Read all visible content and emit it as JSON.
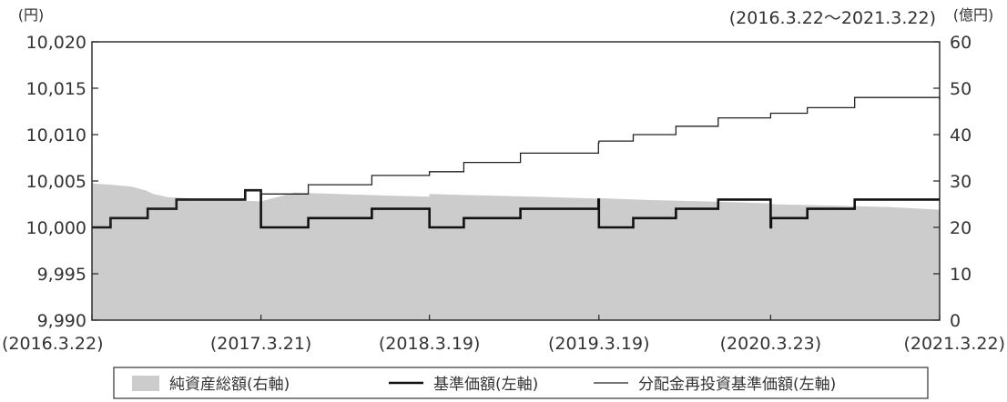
{
  "chart_data": {
    "type": "line",
    "title": "",
    "period": "(2016.3.22～2021.3.22)",
    "left_axis": {
      "unit": "(円)",
      "ylim": [
        9990,
        10020
      ],
      "ticks": [
        "9,990",
        "9,995",
        "10,000",
        "10,005",
        "10,010",
        "10,015",
        "10,020"
      ],
      "tick_values": [
        9990,
        9995,
        10000,
        10005,
        10010,
        10015,
        10020
      ]
    },
    "right_axis": {
      "unit": "(億円)",
      "ylim": [
        0,
        60
      ],
      "ticks": [
        "0",
        "10",
        "20",
        "30",
        "40",
        "50",
        "60"
      ],
      "tick_values": [
        0,
        10,
        20,
        30,
        40,
        50,
        60
      ]
    },
    "x_axis": {
      "range": [
        "2016-03-22",
        "2021-03-22"
      ],
      "ticks": [
        "(2016.3.22)",
        "(2017.3.21)",
        "(2018.3.19)",
        "(2019.3.19)",
        "(2020.3.23)",
        "(2021.3.22)"
      ],
      "tick_dates": [
        "2016-03-22",
        "2017-03-21",
        "2018-03-19",
        "2019-03-19",
        "2020-03-23",
        "2021-03-22"
      ]
    },
    "legend_position": "bottom",
    "series": [
      {
        "name": "純資産総額(右軸)",
        "kind": "area",
        "axis": "right",
        "color": "#cccccc",
        "points": [
          [
            "2016-03-22",
            29.5
          ],
          [
            "2016-05-01",
            29.2
          ],
          [
            "2016-06-15",
            28.8
          ],
          [
            "2016-07-15",
            28.0
          ],
          [
            "2016-08-01",
            27.2
          ],
          [
            "2016-09-01",
            26.5
          ],
          [
            "2016-12-01",
            26.0
          ],
          [
            "2017-03-21",
            25.6
          ],
          [
            "2017-06-01",
            27.5
          ],
          [
            "2017-09-01",
            27.2
          ],
          [
            "2017-12-01",
            26.9
          ],
          [
            "2018-03-18",
            26.6
          ],
          [
            "2018-03-19",
            27.2
          ],
          [
            "2018-07-01",
            26.9
          ],
          [
            "2018-11-01",
            26.6
          ],
          [
            "2019-03-18",
            26.2
          ],
          [
            "2019-03-19",
            26.3
          ],
          [
            "2019-07-01",
            25.9
          ],
          [
            "2019-11-01",
            25.6
          ],
          [
            "2020-03-20",
            25.2
          ],
          [
            "2020-03-23",
            25.0
          ],
          [
            "2020-08-01",
            24.7
          ],
          [
            "2020-12-01",
            24.4
          ],
          [
            "2021-03-22",
            23.8
          ]
        ]
      },
      {
        "name": "基準価額(左軸)",
        "kind": "step",
        "axis": "left",
        "color": "#111111",
        "width": 2.6,
        "points": [
          [
            "2016-03-22",
            10000.0
          ],
          [
            "2016-05-01",
            10001.0
          ],
          [
            "2016-07-20",
            10002.0
          ],
          [
            "2016-09-20",
            10003.0
          ],
          [
            "2016-12-15",
            10003.0
          ],
          [
            "2017-02-15",
            10004.0
          ],
          [
            "2017-03-21",
            10000.0
          ],
          [
            "2017-07-01",
            10001.0
          ],
          [
            "2017-11-15",
            10002.0
          ],
          [
            "2018-03-19",
            10000.0
          ],
          [
            "2018-06-01",
            10001.0
          ],
          [
            "2018-10-01",
            10002.0
          ],
          [
            "2019-03-18",
            10003.0
          ],
          [
            "2019-03-19",
            10000.0
          ],
          [
            "2019-06-01",
            10001.0
          ],
          [
            "2019-09-01",
            10002.0
          ],
          [
            "2019-12-01",
            10003.0
          ],
          [
            "2020-03-23",
            10000.0
          ],
          [
            "2020-03-24",
            10001.0
          ],
          [
            "2020-06-10",
            10002.0
          ],
          [
            "2020-09-20",
            10003.0
          ],
          [
            "2021-03-22",
            10003.0
          ]
        ]
      },
      {
        "name": "分配金再投資基準価額(左軸)",
        "kind": "step",
        "axis": "left",
        "color": "#222222",
        "width": 1.3,
        "points": [
          [
            "2016-03-22",
            10000.0
          ],
          [
            "2016-05-01",
            10001.0
          ],
          [
            "2016-07-20",
            10002.0
          ],
          [
            "2016-09-20",
            10003.0
          ],
          [
            "2016-12-15",
            10003.0
          ],
          [
            "2017-02-15",
            10004.0
          ],
          [
            "2017-03-21",
            10003.6
          ],
          [
            "2017-07-01",
            10004.6
          ],
          [
            "2017-11-15",
            10005.6
          ],
          [
            "2018-03-19",
            10006.0
          ],
          [
            "2018-06-01",
            10007.0
          ],
          [
            "2018-10-01",
            10008.0
          ],
          [
            "2019-03-18",
            10009.1
          ],
          [
            "2019-03-19",
            10009.3
          ],
          [
            "2019-06-01",
            10010.0
          ],
          [
            "2019-09-01",
            10010.9
          ],
          [
            "2019-12-01",
            10011.8
          ],
          [
            "2020-03-23",
            10012.3
          ],
          [
            "2020-06-10",
            10012.9
          ],
          [
            "2020-09-20",
            10014.0
          ],
          [
            "2021-03-22",
            10013.8
          ]
        ]
      }
    ]
  }
}
